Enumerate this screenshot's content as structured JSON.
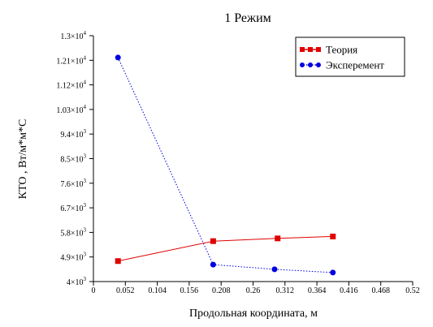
{
  "chart_data": {
    "type": "line",
    "title": "1 Режим",
    "xlabel": "Продольная координата, м",
    "ylabel": "КТО , Вт/м*м*С",
    "xlim": [
      0,
      0.52
    ],
    "ylim": [
      4000,
      13000
    ],
    "x_ticks": [
      "0",
      "0.052",
      "0.104",
      "0.156",
      "0.208",
      "0.26",
      "0.312",
      "0.364",
      "0.416",
      "0.468",
      "0.52"
    ],
    "y_ticks": [
      {
        "value": 4000,
        "mantissa": "4",
        "exp": "3"
      },
      {
        "value": 4900,
        "mantissa": "4.9",
        "exp": "3"
      },
      {
        "value": 5800,
        "mantissa": "5.8",
        "exp": "3"
      },
      {
        "value": 6700,
        "mantissa": "6.7",
        "exp": "3"
      },
      {
        "value": 7600,
        "mantissa": "7.6",
        "exp": "3"
      },
      {
        "value": 8500,
        "mantissa": "8.5",
        "exp": "3"
      },
      {
        "value": 9400,
        "mantissa": "9.4",
        "exp": "3"
      },
      {
        "value": 10300,
        "mantissa": "1.03",
        "exp": "4"
      },
      {
        "value": 11200,
        "mantissa": "1.12",
        "exp": "4"
      },
      {
        "value": 12100,
        "mantissa": "1.21",
        "exp": "4"
      },
      {
        "value": 13000,
        "mantissa": "1.3",
        "exp": "4"
      }
    ],
    "tick_times_sign": "×10",
    "legend_position": "top-right",
    "series": [
      {
        "name": "Теория",
        "color": "#e00000",
        "marker": "square",
        "line": "solid",
        "x": [
          0.04,
          0.195,
          0.3,
          0.39
        ],
        "y": [
          4750,
          5480,
          5580,
          5650
        ]
      },
      {
        "name": "Эксперемент",
        "color": "#0000e0",
        "marker": "circle",
        "line": "dotted",
        "x": [
          0.04,
          0.195,
          0.295,
          0.39
        ],
        "y": [
          12200,
          4620,
          4450,
          4330
        ]
      }
    ]
  }
}
